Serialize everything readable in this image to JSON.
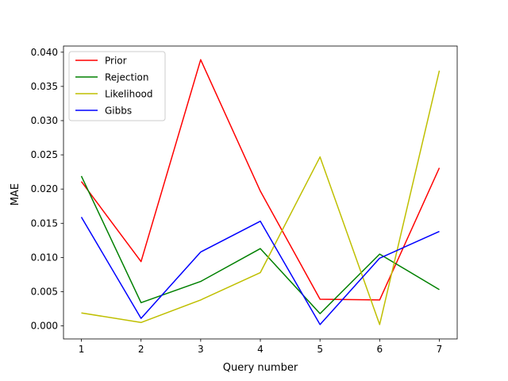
{
  "chart_data": {
    "type": "line",
    "title": "",
    "xlabel": "Query number",
    "ylabel": "MAE",
    "x": [
      1,
      2,
      3,
      4,
      5,
      6,
      7
    ],
    "xlim": [
      0.7,
      7.3
    ],
    "ylim": [
      -0.0019,
      0.0409
    ],
    "xticks": [
      1,
      2,
      3,
      4,
      5,
      6,
      7
    ],
    "yticks": [
      "0.000",
      "0.005",
      "0.010",
      "0.015",
      "0.020",
      "0.025",
      "0.030",
      "0.035",
      "0.040"
    ],
    "grid": false,
    "legend_position": "top-left",
    "series": [
      {
        "name": "Prior",
        "color": "#ff0000",
        "values": [
          0.0211,
          0.0094,
          0.0389,
          0.0197,
          0.0039,
          0.0038,
          0.0231
        ]
      },
      {
        "name": "Rejection",
        "color": "#008000",
        "values": [
          0.0219,
          0.0034,
          0.0065,
          0.0113,
          0.0018,
          0.0105,
          0.0053
        ]
      },
      {
        "name": "Likelihood",
        "color": "#bfbf00",
        "values": [
          0.0019,
          0.0005,
          0.0038,
          0.0078,
          0.0247,
          0.0002,
          0.0373
        ]
      },
      {
        "name": "Gibbs",
        "color": "#0000ff",
        "values": [
          0.0159,
          0.0011,
          0.0108,
          0.0153,
          0.0002,
          0.0099,
          0.0138
        ]
      }
    ]
  }
}
